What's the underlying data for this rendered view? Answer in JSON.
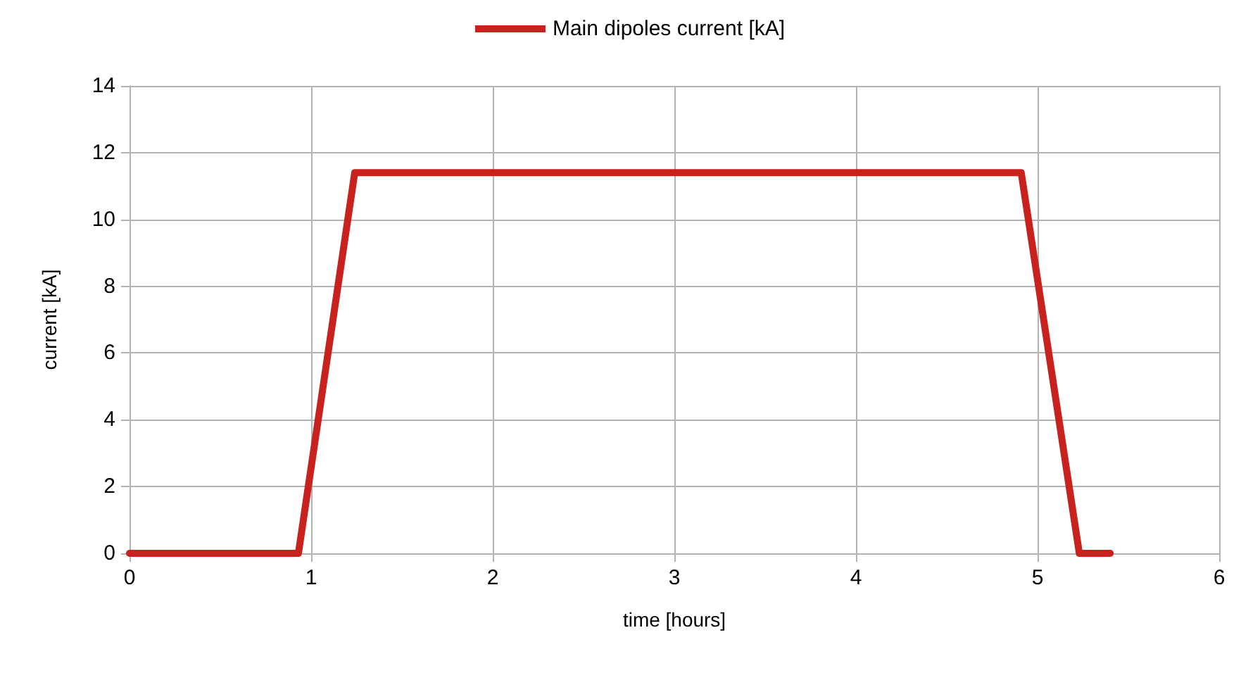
{
  "chart_data": {
    "type": "line",
    "xlabel": "time [hours]",
    "ylabel": "current [kA]",
    "series": [
      {
        "name": "Main dipoles current [kA]",
        "color": "#c9211e",
        "x": [
          0,
          0.93,
          1.24,
          4.91,
          5.23,
          5.4
        ],
        "values": [
          0,
          0,
          11.4,
          11.4,
          0,
          0
        ]
      }
    ],
    "xlim": [
      0,
      6
    ],
    "xticks": [
      0,
      1,
      2,
      3,
      4,
      5,
      6
    ],
    "ylim": [
      0,
      14
    ],
    "yticks": [
      0,
      2,
      4,
      6,
      8,
      10,
      12,
      14
    ],
    "grid": true,
    "legend": "top",
    "marker": "none",
    "line_style": "solid"
  }
}
